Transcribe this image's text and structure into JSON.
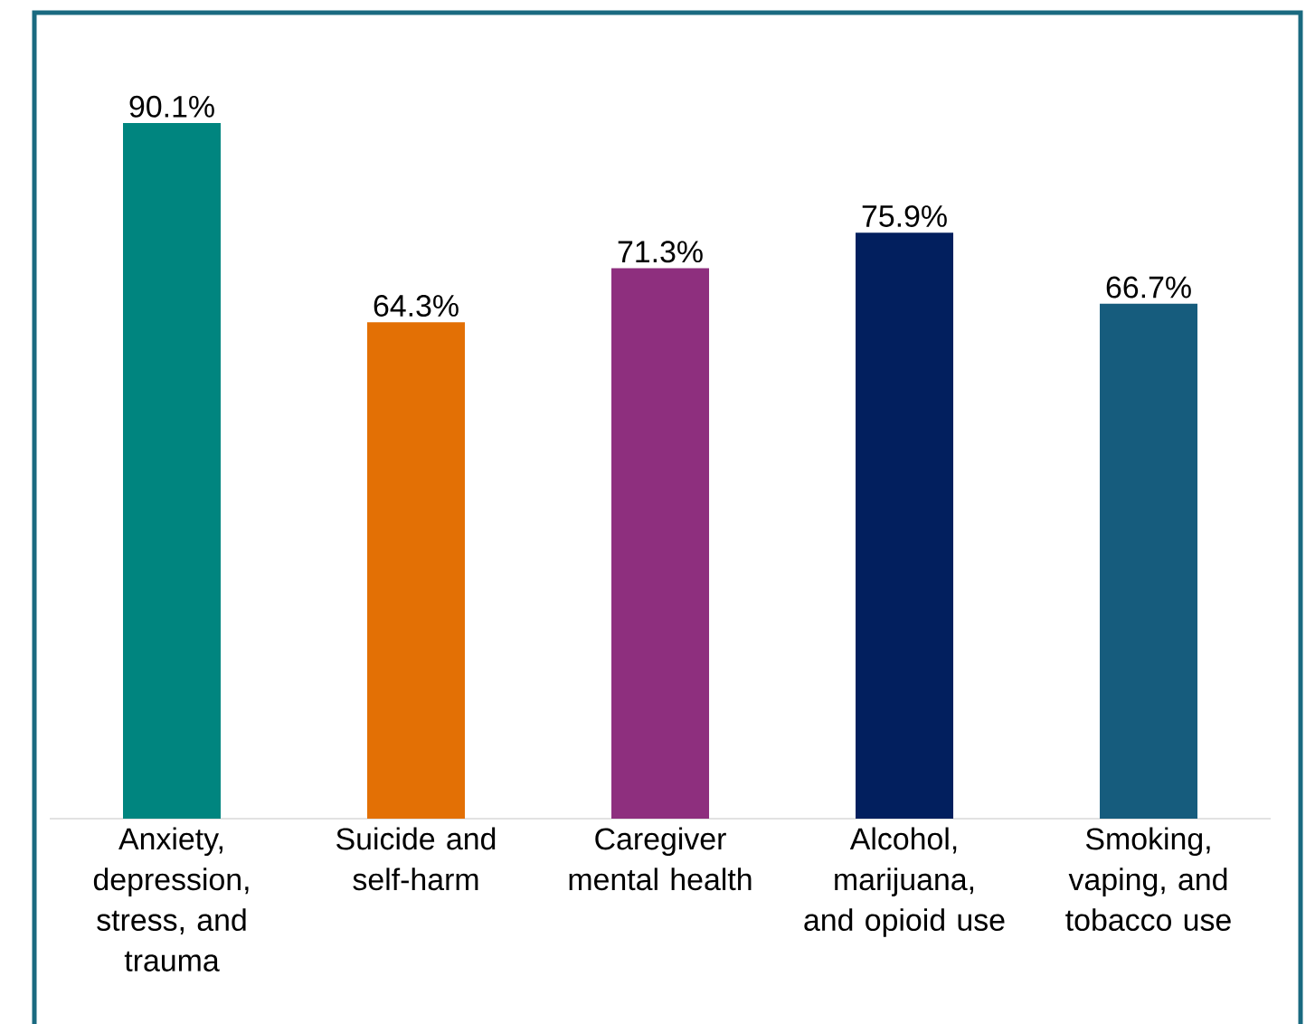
{
  "chart_data": {
    "type": "bar",
    "categories": [
      "Anxiety, depression, stress, and trauma",
      "Suicide and self-harm",
      "Caregiver mental health",
      "Alcohol, marijuana, and opioid use",
      "Smoking, vaping, and tobacco use"
    ],
    "values": [
      90.1,
      64.3,
      71.3,
      75.9,
      66.7
    ],
    "colors": [
      "#00857f",
      "#e37005",
      "#8e2f7e",
      "#021f5e",
      "#165c7d"
    ],
    "value_labels": [
      "90.1%",
      "64.3%",
      "71.3%",
      "75.9%",
      "66.7%"
    ]
  }
}
